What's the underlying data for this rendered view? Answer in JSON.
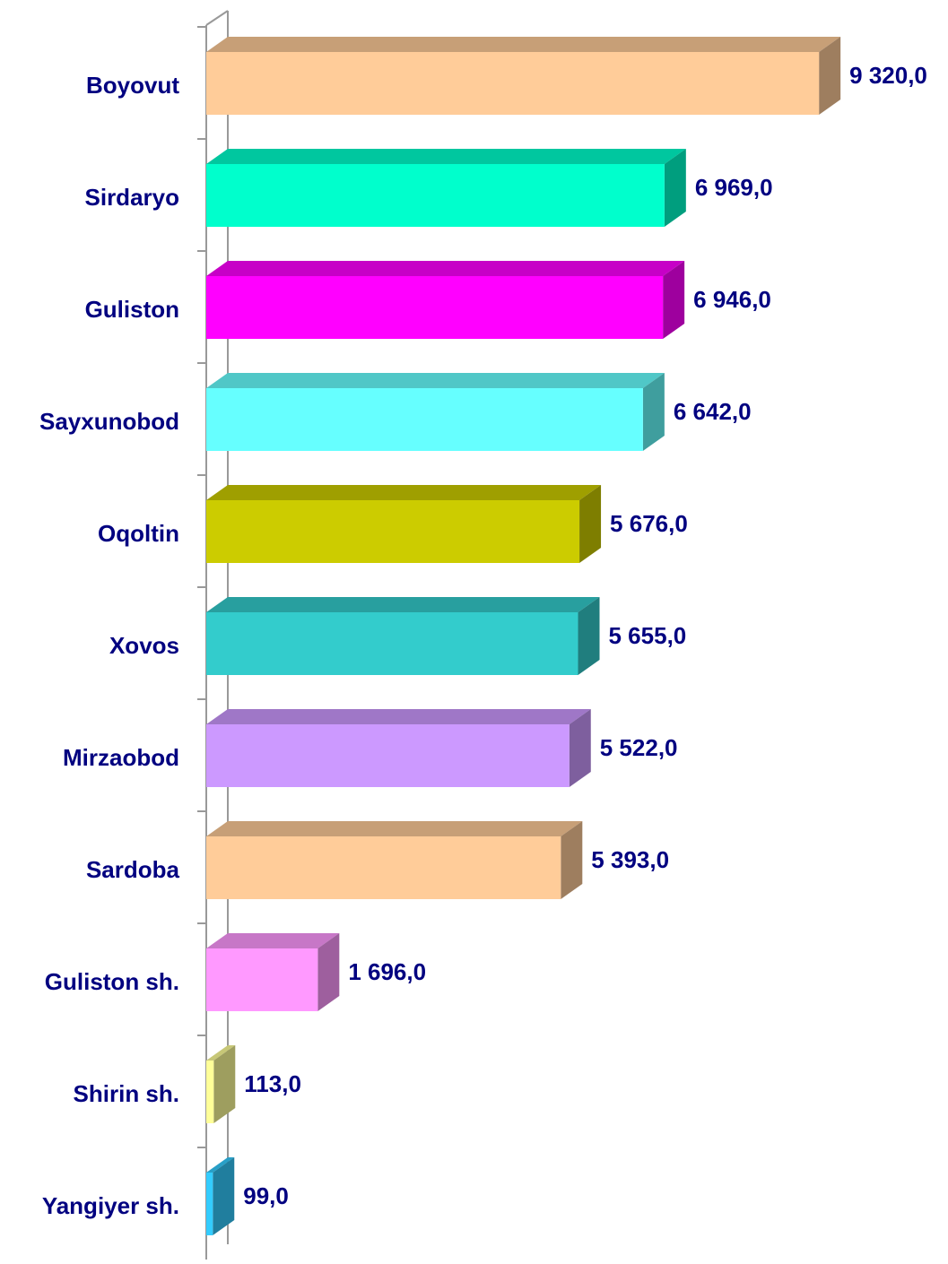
{
  "chart_data": {
    "type": "bar3d-horizontal",
    "categories": [
      "Boyovut",
      "Sirdaryo",
      "Guliston",
      "Sayxunobod",
      "Oqoltin",
      "Xovos",
      "Mirzaobod",
      "Sardoba",
      "Guliston sh.",
      "Shirin sh.",
      "Yangiyer sh."
    ],
    "values": [
      9320,
      6969,
      6946,
      6642,
      5676,
      5655,
      5522,
      5393,
      1696,
      113,
      99
    ],
    "value_labels": [
      "9 320,0",
      "6 969,0",
      "6 946,0",
      "6 642,0",
      "5 676,0",
      "5 655,0",
      "5 522,0",
      "5 393,0",
      "1 696,0",
      "113,0",
      "99,0"
    ],
    "colors": [
      "#ffcc99",
      "#00ffcc",
      "#ff00ff",
      "#66ffff",
      "#cccc00",
      "#33cccc",
      "#cc99ff",
      "#ffcc99",
      "#ff99ff",
      "#ffff99",
      "#33ccff"
    ],
    "xlim": [
      0,
      10000
    ]
  }
}
